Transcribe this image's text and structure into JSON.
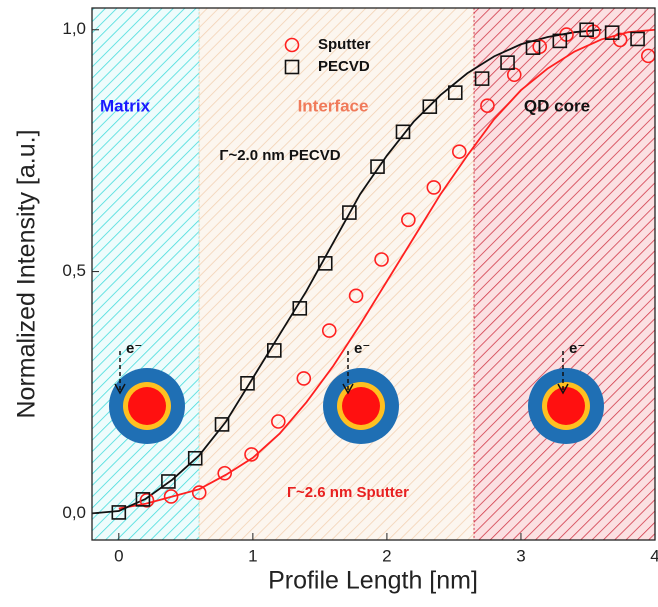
{
  "chart_data": {
    "type": "scatter",
    "xlabel": "Profile Length [nm]",
    "ylabel": "Normalized Intensity [a.u.]",
    "xlim": [
      -0.2,
      4
    ],
    "ylim": [
      -0.055,
      1.045
    ],
    "xticks": [
      0,
      1,
      2,
      3,
      4
    ],
    "yticks": [
      {
        "value": 0,
        "label": "0,0"
      },
      {
        "value": 0.5,
        "label": "0,5"
      },
      {
        "value": 1,
        "label": "1,0"
      }
    ],
    "regions": [
      {
        "label": "Matrix",
        "xlim": [
          -0.2,
          0.6
        ],
        "color": "#1a1aff"
      },
      {
        "label": "Interface",
        "xlim": [
          0.6,
          2.65
        ],
        "color": "#f07a5a"
      },
      {
        "label": "QD core",
        "xlim": [
          2.65,
          4
        ],
        "color": "#111111"
      }
    ],
    "series": [
      {
        "name": "Sputter",
        "color": "#ff2020",
        "marker": "circle",
        "x": [
          0.21,
          0.39,
          0.6,
          0.79,
          0.99,
          1.19,
          1.38,
          1.57,
          1.77,
          1.96,
          2.16,
          2.35,
          2.54,
          2.75,
          2.95,
          3.14,
          3.34,
          3.54,
          3.74,
          3.95
        ],
        "values": [
          0.027,
          0.035,
          0.043,
          0.083,
          0.122,
          0.19,
          0.279,
          0.378,
          0.45,
          0.525,
          0.607,
          0.674,
          0.748,
          0.843,
          0.907,
          0.965,
          0.99,
          0.996,
          0.979,
          0.946
        ]
      },
      {
        "name": "PECVD",
        "color": "#111111",
        "marker": "square",
        "x": [
          0,
          0.18,
          0.37,
          0.57,
          0.77,
          0.96,
          1.16,
          1.35,
          1.54,
          1.72,
          1.93,
          2.12,
          2.32,
          2.51,
          2.71,
          2.9,
          3.09,
          3.29,
          3.49,
          3.68,
          3.87
        ],
        "values": [
          0.002,
          0.029,
          0.066,
          0.114,
          0.184,
          0.269,
          0.337,
          0.424,
          0.517,
          0.622,
          0.717,
          0.789,
          0.841,
          0.87,
          0.899,
          0.932,
          0.963,
          0.977,
          1.0,
          0.994,
          0.981
        ]
      }
    ],
    "fits": [
      {
        "color": "#ff2020",
        "x": [
          0,
          0.2,
          0.4,
          0.6,
          0.8,
          1.0,
          1.2,
          1.4,
          1.6,
          1.8,
          2.0,
          2.2,
          2.4,
          2.6,
          2.8,
          3.0,
          3.2,
          3.4,
          3.6,
          3.8,
          4.0
        ],
        "values": [
          0.01,
          0.02,
          0.035,
          0.05,
          0.08,
          0.115,
          0.165,
          0.23,
          0.305,
          0.39,
          0.48,
          0.57,
          0.66,
          0.74,
          0.815,
          0.875,
          0.92,
          0.955,
          0.98,
          0.995,
          1.0
        ]
      },
      {
        "color": "#111111",
        "x": [
          -0.2,
          0,
          0.2,
          0.4,
          0.6,
          0.8,
          1.0,
          1.2,
          1.4,
          1.6,
          1.8,
          2.0,
          2.2,
          2.4,
          2.6,
          2.8,
          3.0,
          3.2,
          3.4,
          3.6
        ],
        "values": [
          0.0,
          0.005,
          0.03,
          0.07,
          0.12,
          0.19,
          0.28,
          0.37,
          0.46,
          0.56,
          0.66,
          0.74,
          0.81,
          0.865,
          0.91,
          0.945,
          0.97,
          0.985,
          0.995,
          1.0
        ]
      }
    ],
    "annotations": [
      "Γ~2.0 nm PECVD",
      "Γ~2.6 nm Sputter"
    ],
    "electron_label": "e⁻",
    "legend": "upper center"
  }
}
